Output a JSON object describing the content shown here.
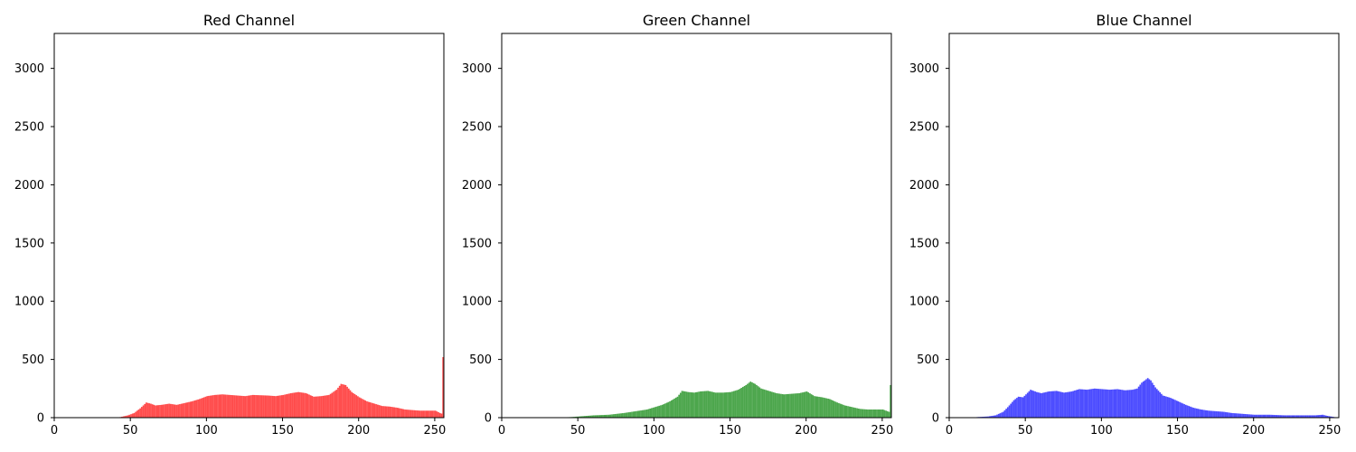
{
  "chart_data": [
    {
      "type": "bar",
      "title": "Red Channel",
      "color": "#ff0000",
      "opacity": 0.7,
      "xlim": [
        0,
        256
      ],
      "ylim": [
        0,
        3300
      ],
      "xticks": [
        0,
        50,
        100,
        150,
        200,
        250
      ],
      "yticks": [
        0,
        500,
        1000,
        1500,
        2000,
        2500,
        3000
      ],
      "profile": [
        [
          0,
          0
        ],
        [
          40,
          0
        ],
        [
          43,
          5
        ],
        [
          48,
          20
        ],
        [
          52,
          40
        ],
        [
          56,
          80
        ],
        [
          60,
          130
        ],
        [
          63,
          120
        ],
        [
          66,
          105
        ],
        [
          70,
          110
        ],
        [
          75,
          120
        ],
        [
          80,
          110
        ],
        [
          85,
          125
        ],
        [
          90,
          140
        ],
        [
          95,
          160
        ],
        [
          100,
          185
        ],
        [
          105,
          195
        ],
        [
          110,
          200
        ],
        [
          115,
          195
        ],
        [
          120,
          190
        ],
        [
          125,
          185
        ],
        [
          130,
          195
        ],
        [
          140,
          190
        ],
        [
          145,
          185
        ],
        [
          150,
          195
        ],
        [
          155,
          210
        ],
        [
          160,
          220
        ],
        [
          165,
          210
        ],
        [
          170,
          180
        ],
        [
          175,
          185
        ],
        [
          180,
          195
        ],
        [
          185,
          240
        ],
        [
          188,
          290
        ],
        [
          191,
          280
        ],
        [
          195,
          220
        ],
        [
          200,
          175
        ],
        [
          205,
          140
        ],
        [
          210,
          120
        ],
        [
          215,
          100
        ],
        [
          220,
          95
        ],
        [
          225,
          85
        ],
        [
          230,
          70
        ],
        [
          235,
          65
        ],
        [
          240,
          60
        ],
        [
          245,
          60
        ],
        [
          250,
          60
        ],
        [
          253,
          40
        ],
        [
          254,
          35
        ],
        [
          255,
          520
        ]
      ]
    },
    {
      "type": "bar",
      "title": "Green Channel",
      "color": "#008000",
      "opacity": 0.7,
      "xlim": [
        0,
        256
      ],
      "ylim": [
        0,
        3300
      ],
      "xticks": [
        0,
        50,
        100,
        150,
        200,
        250
      ],
      "yticks": [
        0,
        500,
        1000,
        1500,
        2000,
        2500,
        3000
      ],
      "profile": [
        [
          0,
          0
        ],
        [
          35,
          0
        ],
        [
          45,
          5
        ],
        [
          50,
          10
        ],
        [
          55,
          15
        ],
        [
          60,
          20
        ],
        [
          70,
          25
        ],
        [
          80,
          40
        ],
        [
          90,
          60
        ],
        [
          95,
          70
        ],
        [
          100,
          90
        ],
        [
          105,
          110
        ],
        [
          110,
          140
        ],
        [
          115,
          180
        ],
        [
          118,
          230
        ],
        [
          122,
          220
        ],
        [
          126,
          215
        ],
        [
          130,
          225
        ],
        [
          135,
          230
        ],
        [
          140,
          215
        ],
        [
          145,
          215
        ],
        [
          150,
          220
        ],
        [
          155,
          240
        ],
        [
          160,
          280
        ],
        [
          163,
          310
        ],
        [
          166,
          290
        ],
        [
          170,
          250
        ],
        [
          175,
          230
        ],
        [
          180,
          210
        ],
        [
          185,
          200
        ],
        [
          190,
          205
        ],
        [
          195,
          210
        ],
        [
          200,
          225
        ],
        [
          205,
          185
        ],
        [
          210,
          175
        ],
        [
          215,
          160
        ],
        [
          220,
          130
        ],
        [
          225,
          105
        ],
        [
          230,
          90
        ],
        [
          235,
          75
        ],
        [
          240,
          70
        ],
        [
          245,
          70
        ],
        [
          250,
          70
        ],
        [
          253,
          55
        ],
        [
          254,
          50
        ],
        [
          255,
          280
        ]
      ]
    },
    {
      "type": "bar",
      "title": "Blue Channel",
      "color": "#0000ff",
      "opacity": 0.7,
      "xlim": [
        0,
        256
      ],
      "ylim": [
        0,
        3300
      ],
      "xticks": [
        0,
        50,
        100,
        150,
        200,
        250
      ],
      "yticks": [
        0,
        500,
        1000,
        1500,
        2000,
        2500,
        3000
      ],
      "profile": [
        [
          0,
          0
        ],
        [
          15,
          0
        ],
        [
          18,
          5
        ],
        [
          25,
          10
        ],
        [
          30,
          20
        ],
        [
          35,
          50
        ],
        [
          38,
          90
        ],
        [
          42,
          150
        ],
        [
          45,
          180
        ],
        [
          48,
          175
        ],
        [
          50,
          200
        ],
        [
          53,
          240
        ],
        [
          57,
          220
        ],
        [
          60,
          210
        ],
        [
          65,
          225
        ],
        [
          70,
          230
        ],
        [
          75,
          215
        ],
        [
          80,
          225
        ],
        [
          85,
          245
        ],
        [
          90,
          240
        ],
        [
          95,
          250
        ],
        [
          100,
          245
        ],
        [
          105,
          240
        ],
        [
          110,
          245
        ],
        [
          115,
          235
        ],
        [
          120,
          240
        ],
        [
          123,
          250
        ],
        [
          126,
          300
        ],
        [
          130,
          340
        ],
        [
          132,
          320
        ],
        [
          135,
          260
        ],
        [
          140,
          190
        ],
        [
          145,
          170
        ],
        [
          150,
          140
        ],
        [
          155,
          110
        ],
        [
          160,
          85
        ],
        [
          165,
          70
        ],
        [
          170,
          60
        ],
        [
          175,
          55
        ],
        [
          180,
          50
        ],
        [
          185,
          40
        ],
        [
          190,
          35
        ],
        [
          195,
          30
        ],
        [
          200,
          25
        ],
        [
          210,
          25
        ],
        [
          220,
          20
        ],
        [
          230,
          20
        ],
        [
          240,
          20
        ],
        [
          245,
          25
        ],
        [
          248,
          15
        ],
        [
          255,
          0
        ]
      ]
    }
  ]
}
